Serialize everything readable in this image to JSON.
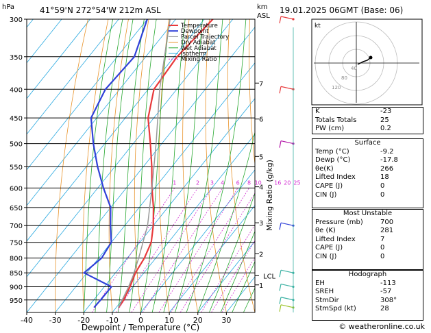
{
  "header": {
    "location": "41°59'N  272°54'W  212m  ASL",
    "datetime": "19.01.2025  06GMT  (Base: 06)",
    "hpa_label": "hPa",
    "km_label": "km",
    "asl_label": "ASL"
  },
  "chart_data": {
    "type": "skew-t",
    "title": "41°59'N  272°54'W  212m  ASL",
    "xlabel": "Dewpoint / Temperature (°C)",
    "ylabel": "hPa",
    "y2label": "Mixing Ratio (g/kg)",
    "xlim": [
      -40,
      40
    ],
    "ylim": [
      1000,
      300
    ],
    "x_ticks": [
      -40,
      -30,
      -20,
      -10,
      0,
      10,
      20,
      30
    ],
    "pressure_levels": [
      300,
      350,
      400,
      450,
      500,
      550,
      600,
      650,
      700,
      750,
      800,
      850,
      900,
      950
    ],
    "km_ticks": [
      {
        "km": "7",
        "p": 390
      },
      {
        "km": "6",
        "p": 452
      },
      {
        "km": "5",
        "p": 527
      },
      {
        "km": "4",
        "p": 597
      },
      {
        "km": "3",
        "p": 692
      },
      {
        "km": "2",
        "p": 786
      },
      {
        "km": "1",
        "p": 893
      },
      {
        "km": "LCL",
        "p": 860
      }
    ],
    "mixing_ratio_labels": [
      "1",
      "2",
      "3",
      "4",
      "6",
      "8",
      "10",
      "16",
      "20",
      "25"
    ],
    "mixing_ratio_values": [
      1,
      2,
      3,
      4,
      6,
      8,
      10,
      16,
      20,
      25
    ],
    "legend": [
      "Temperature",
      "Dewpoint",
      "Parcel Trajectory",
      "Dry Adiabat",
      "Wet Adiabat",
      "Isotherm",
      "Mixing Ratio"
    ],
    "series": [
      {
        "name": "Temperature",
        "color": "#e8393b",
        "points": [
          [
            300,
            -57
          ],
          [
            350,
            -59
          ],
          [
            400,
            -58
          ],
          [
            450,
            -52
          ],
          [
            500,
            -44
          ],
          [
            550,
            -37
          ],
          [
            600,
            -31
          ],
          [
            650,
            -25
          ],
          [
            700,
            -20
          ],
          [
            750,
            -16
          ],
          [
            800,
            -14
          ],
          [
            850,
            -13
          ],
          [
            900,
            -11
          ],
          [
            950,
            -9.5
          ],
          [
            980,
            -9.2
          ]
        ]
      },
      {
        "name": "Dewpoint",
        "color": "#2f40d8",
        "points": [
          [
            300,
            -80
          ],
          [
            350,
            -74
          ],
          [
            400,
            -75
          ],
          [
            450,
            -72
          ],
          [
            500,
            -64
          ],
          [
            550,
            -56
          ],
          [
            600,
            -48
          ],
          [
            650,
            -40
          ],
          [
            700,
            -35
          ],
          [
            750,
            -30
          ],
          [
            800,
            -29
          ],
          [
            850,
            -31
          ],
          [
            900,
            -17.5
          ],
          [
            950,
            -17.6
          ],
          [
            980,
            -17.8
          ]
        ]
      },
      {
        "name": "Parcel Trajectory",
        "color": "#999999",
        "points": [
          [
            300,
            -72
          ],
          [
            400,
            -56
          ],
          [
            500,
            -42
          ],
          [
            600,
            -31
          ],
          [
            700,
            -22
          ],
          [
            800,
            -16
          ],
          [
            860,
            -13
          ],
          [
            900,
            -11.5
          ],
          [
            980,
            -9.2
          ]
        ]
      }
    ]
  },
  "colors": {
    "temperature": "#e8393b",
    "dewpoint": "#2f40d8",
    "parcel": "#999999",
    "dry_adiabat": "#e8932a",
    "wet_adiabat": "#27a82f",
    "isotherm": "#27a8e0",
    "mixing_ratio": "#d12bd1",
    "wind": "#3bb1a3"
  },
  "hodograph": {
    "label": "kt",
    "ring_labels": [
      "40",
      "80",
      "120"
    ]
  },
  "indices": {
    "rows": [
      {
        "label": "K",
        "value": "-23"
      },
      {
        "label": "Totals Totals",
        "value": "25"
      },
      {
        "label": "PW (cm)",
        "value": "0.2"
      }
    ]
  },
  "surface": {
    "title": "Surface",
    "rows": [
      {
        "label": "Temp (°C)",
        "value": "-9.2"
      },
      {
        "label": "Dewp (°C)",
        "value": "-17.8"
      },
      {
        "label": "θe(K)",
        "value": "266"
      },
      {
        "label": "Lifted Index",
        "value": "18"
      },
      {
        "label": "CAPE (J)",
        "value": "0"
      },
      {
        "label": "CIN (J)",
        "value": "0"
      }
    ]
  },
  "most_unstable": {
    "title": "Most Unstable",
    "rows": [
      {
        "label": "Pressure (mb)",
        "value": "700"
      },
      {
        "label": "θe (K)",
        "value": "281"
      },
      {
        "label": "Lifted Index",
        "value": "7"
      },
      {
        "label": "CAPE (J)",
        "value": "0"
      },
      {
        "label": "CIN (J)",
        "value": "0"
      }
    ]
  },
  "hodograph_table": {
    "title": "Hodograph",
    "rows": [
      {
        "label": "EH",
        "value": "-113"
      },
      {
        "label": "SREH",
        "value": "-57"
      },
      {
        "label": "StmDir",
        "value": "308°"
      },
      {
        "label": "StmSpd (kt)",
        "value": "28"
      }
    ]
  },
  "footer": {
    "copyright": "© weatheronline.co.uk"
  }
}
